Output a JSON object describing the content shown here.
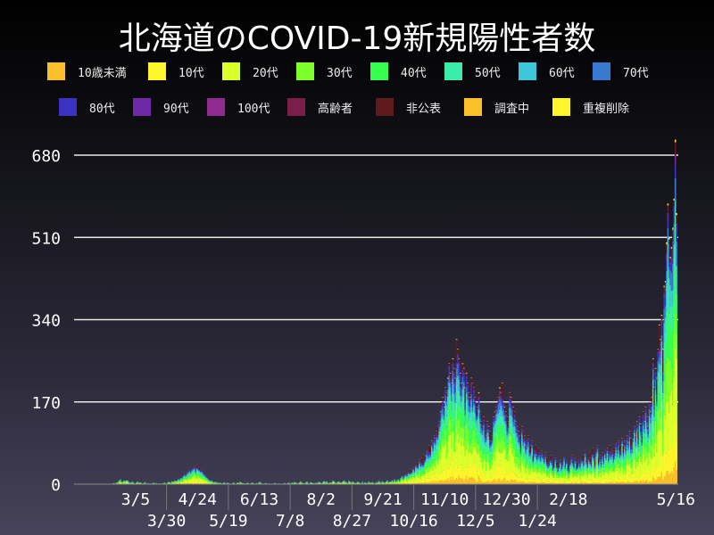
{
  "chart_data": {
    "type": "bar",
    "stacked": true,
    "title": "北海道のCOVID-19新規陽性者数",
    "legend_placement": "top",
    "grid": "horizontal",
    "ylim": [
      0,
      700
    ],
    "yticks": [
      0,
      170,
      340,
      510,
      680
    ],
    "x_start_date": "2020-01-28",
    "x_end_date": "2021-05-16",
    "xtick_labels": [
      "3/5",
      "3/30",
      "4/24",
      "5/19",
      "6/13",
      "7/8",
      "8/2",
      "8/27",
      "9/21",
      "10/16",
      "11/10",
      "12/5",
      "12/30",
      "1/24",
      "2/18",
      "5/16"
    ],
    "xtick_dates": [
      "2020-03-05",
      "2020-03-30",
      "2020-04-24",
      "2020-05-19",
      "2020-06-13",
      "2020-07-08",
      "2020-08-02",
      "2020-08-27",
      "2020-09-21",
      "2020-10-16",
      "2020-11-10",
      "2020-12-05",
      "2020-12-30",
      "2021-01-24",
      "2021-02-18",
      "2021-05-16"
    ],
    "series": [
      {
        "name": "10歳未満",
        "color": "#fbbf2a"
      },
      {
        "name": "10代",
        "color": "#fef52a"
      },
      {
        "name": "20代",
        "color": "#daff2a"
      },
      {
        "name": "30代",
        "color": "#7dff2a"
      },
      {
        "name": "40代",
        "color": "#37ff52"
      },
      {
        "name": "50代",
        "color": "#3cecaa"
      },
      {
        "name": "60代",
        "color": "#3cc8d8"
      },
      {
        "name": "70代",
        "color": "#3a78d0"
      },
      {
        "name": "80代",
        "color": "#3a32c0"
      },
      {
        "name": "90代",
        "color": "#6e2aa6"
      },
      {
        "name": "100代",
        "color": "#902a8e"
      },
      {
        "name": "高齢者",
        "color": "#7a1e4c"
      },
      {
        "name": "非公表",
        "color": "#5e1a1e"
      },
      {
        "name": "調査中",
        "color": "#fbbf2a"
      },
      {
        "name": "重複削除",
        "color": "#fef52a"
      }
    ],
    "daily_totals": [
      1,
      0,
      0,
      0,
      1,
      0,
      0,
      0,
      0,
      0,
      0,
      0,
      0,
      0,
      0,
      0,
      0,
      1,
      2,
      3,
      1,
      4,
      5,
      9,
      11,
      7,
      6,
      9,
      8,
      12,
      9,
      6,
      4,
      5,
      6,
      3,
      2,
      4,
      7,
      4,
      5,
      3,
      2,
      3,
      5,
      1,
      3,
      2,
      2,
      1,
      3,
      4,
      2,
      3,
      1,
      2,
      2,
      1,
      2,
      3,
      4,
      2,
      3,
      6,
      5,
      4,
      8,
      7,
      9,
      8,
      10,
      12,
      11,
      15,
      14,
      18,
      22,
      19,
      25,
      28,
      30,
      27,
      32,
      35,
      38,
      30,
      40,
      33,
      36,
      28,
      30,
      25,
      22,
      18,
      15,
      12,
      10,
      8,
      9,
      6,
      5,
      7,
      4,
      5,
      3,
      4,
      2,
      3,
      5,
      2,
      3,
      4,
      2,
      1,
      2,
      3,
      4,
      1,
      2,
      5,
      3,
      6,
      4,
      3,
      2,
      3,
      2,
      4,
      1,
      2,
      3,
      5,
      2,
      1,
      3,
      2,
      4,
      6,
      3,
      2,
      1,
      2,
      3,
      1,
      2,
      0,
      1,
      2,
      1,
      3,
      2,
      1,
      0,
      2,
      1,
      1,
      2,
      3,
      1,
      2,
      4,
      3,
      2,
      5,
      3,
      6,
      4,
      3,
      2,
      5,
      7,
      4,
      3,
      2,
      4,
      6,
      3,
      2,
      5,
      4,
      3,
      2,
      4,
      3,
      5,
      6,
      4,
      3,
      6,
      8,
      5,
      7,
      4,
      3,
      6,
      5,
      9,
      7,
      4,
      3,
      8,
      6,
      5,
      4,
      7,
      9,
      6,
      5,
      3,
      8,
      6,
      4,
      7,
      5,
      3,
      4,
      6,
      5,
      4,
      3,
      6,
      2,
      5,
      4,
      3,
      7,
      5,
      4,
      6,
      3,
      2,
      5,
      4,
      8,
      6,
      3,
      7,
      5,
      4,
      6,
      9,
      5,
      7,
      8,
      10,
      6,
      12,
      8,
      10,
      12,
      9,
      15,
      18,
      14,
      20,
      22,
      19,
      25,
      24,
      30,
      28,
      35,
      30,
      40,
      38,
      45,
      50,
      42,
      55,
      48,
      60,
      58,
      70,
      65,
      80,
      76,
      90,
      85,
      100,
      95,
      110,
      120,
      130,
      150,
      170,
      180,
      160,
      200,
      190,
      220,
      250,
      230,
      210,
      260,
      240,
      220,
      300,
      280,
      260,
      230,
      210,
      250,
      240,
      200,
      230,
      210,
      190,
      180,
      220,
      210,
      200,
      180,
      170,
      160,
      190,
      150,
      130,
      120,
      140,
      110,
      100,
      130,
      120,
      110,
      90,
      100,
      140,
      150,
      160,
      170,
      180,
      200,
      190,
      210,
      170,
      160,
      150,
      140,
      130,
      190,
      180,
      170,
      160,
      150,
      130,
      120,
      110,
      100,
      90,
      120,
      110,
      100,
      80,
      90,
      100,
      70,
      80,
      90,
      60,
      70,
      80,
      60,
      75,
      65,
      55,
      70,
      60,
      50,
      65,
      55,
      40,
      45,
      60,
      50,
      35,
      40,
      55,
      45,
      30,
      40,
      50,
      35,
      45,
      60,
      40,
      50,
      35,
      30,
      45,
      60,
      50,
      40,
      55,
      35,
      45,
      50,
      40,
      55,
      60,
      45,
      70,
      50,
      40,
      65,
      55,
      45,
      75,
      60,
      50,
      70,
      80,
      55,
      60,
      45,
      65,
      50,
      70,
      60,
      75,
      55,
      80,
      65,
      70,
      60,
      75,
      85,
      70,
      90,
      80,
      70,
      95,
      80,
      90,
      75,
      100,
      85,
      110,
      95,
      80,
      105,
      120,
      100,
      130,
      110,
      140,
      125,
      100,
      150,
      130,
      160,
      140,
      120,
      170,
      150,
      180,
      260,
      200,
      240,
      220,
      280,
      330,
      300,
      350,
      280,
      410,
      420,
      500,
      580,
      510,
      470,
      490,
      530,
      590,
      712,
      560
    ]
  }
}
